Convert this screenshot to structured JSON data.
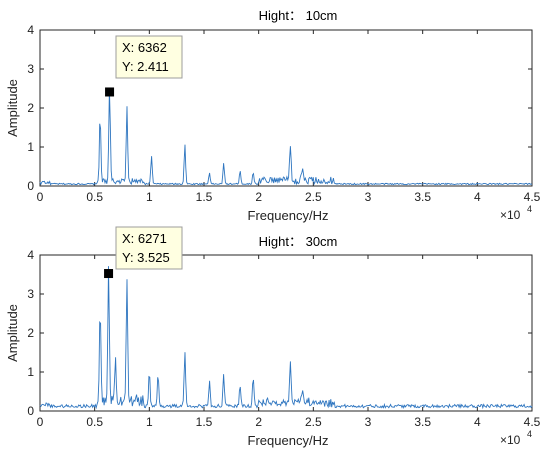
{
  "chart_data": [
    {
      "type": "line",
      "title": "Hight： 10cm",
      "xlabel": "Frequency/Hz",
      "ylabel": "Amplitude",
      "x_exponent_label": "×10",
      "x_exponent_power": "4",
      "xlim": [
        0,
        45000
      ],
      "ylim": [
        0,
        4
      ],
      "xticks": [
        0,
        5000,
        10000,
        15000,
        20000,
        25000,
        30000,
        35000,
        40000,
        45000
      ],
      "xtick_labels": [
        "0",
        "0.5",
        "1",
        "1.5",
        "2",
        "2.5",
        "3",
        "3.5",
        "4",
        "4.5"
      ],
      "yticks": [
        0,
        1,
        2,
        3,
        4
      ],
      "ytick_labels": [
        "0",
        "1",
        "2",
        "3",
        "4"
      ],
      "grid": false,
      "color": "#2f76c0",
      "baseline": 0.05,
      "peaks": [
        [
          5500,
          1.65
        ],
        [
          6362,
          2.41
        ],
        [
          7950,
          1.88
        ],
        [
          10200,
          0.7
        ],
        [
          13250,
          1.02
        ],
        [
          15500,
          0.3
        ],
        [
          16800,
          0.52
        ],
        [
          18300,
          0.35
        ],
        [
          19500,
          0.3
        ],
        [
          22900,
          0.9
        ],
        [
          24000,
          0.3
        ]
      ],
      "datatip": {
        "x": 6362,
        "y": 2.411,
        "x_text": "X: 6362",
        "y_text": "Y: 2.411"
      }
    },
    {
      "type": "line",
      "title": "Hight： 30cm",
      "xlabel": "Frequency/Hz",
      "ylabel": "Amplitude",
      "x_exponent_label": "×10",
      "x_exponent_power": "4",
      "xlim": [
        0,
        45000
      ],
      "ylim": [
        0,
        4
      ],
      "xticks": [
        0,
        5000,
        10000,
        15000,
        20000,
        25000,
        30000,
        35000,
        40000,
        45000
      ],
      "xtick_labels": [
        "0",
        "0.5",
        "1",
        "1.5",
        "2",
        "2.5",
        "3",
        "3.5",
        "4",
        "4.5"
      ],
      "yticks": [
        0,
        1,
        2,
        3,
        4
      ],
      "ytick_labels": [
        "0",
        "1",
        "2",
        "3",
        "4"
      ],
      "grid": false,
      "color": "#2f76c0",
      "baseline": 0.12,
      "peaks": [
        [
          5500,
          2.3
        ],
        [
          6271,
          3.525
        ],
        [
          6900,
          1.2
        ],
        [
          7950,
          3.05
        ],
        [
          10000,
          0.9
        ],
        [
          10800,
          0.8
        ],
        [
          13250,
          1.42
        ],
        [
          15500,
          0.65
        ],
        [
          16800,
          0.8
        ],
        [
          18300,
          0.55
        ],
        [
          19500,
          0.75
        ],
        [
          22900,
          1.15
        ],
        [
          24000,
          0.35
        ]
      ],
      "datatip": {
        "x": 6271,
        "y": 3.525,
        "x_text": "X: 6271",
        "y_text": "Y: 3.525"
      }
    }
  ]
}
